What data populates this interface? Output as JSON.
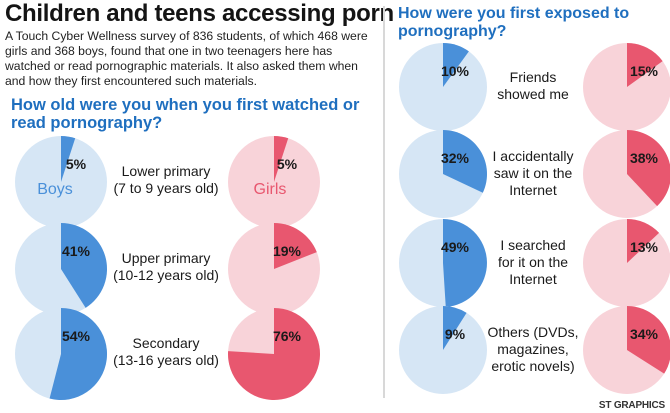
{
  "title": "Children and teens accessing porn",
  "intro": "A Touch Cyber Wellness survey of 836 students, of which 468 were girls and 368 boys, found that one in two teenagers here has watched or read pornographic materials. It also asked them when and how they first encountered such materials.",
  "credit": "ST GRAPHICS",
  "colors": {
    "boys_fill": "#4a90d9",
    "boys_bg": "#d6e6f5",
    "girls_fill": "#e8576f",
    "girls_bg": "#f8d3d9"
  },
  "chart_data": [
    {
      "type": "pie",
      "title": "How old were you when you first watched or read pornography?",
      "legend": [
        "Boys",
        "Girls"
      ],
      "categories": [
        "Lower primary (7 to 9 years old)",
        "Upper primary (10-12 years old)",
        "Secondary (13-16 years old)"
      ],
      "series": [
        {
          "name": "Boys",
          "values": [
            5,
            41,
            54
          ]
        },
        {
          "name": "Girls",
          "values": [
            5,
            19,
            76
          ]
        }
      ]
    },
    {
      "type": "pie",
      "title": "How were you first exposed to pornography?",
      "categories": [
        "Friends showed me",
        "I accidentally saw it on the Internet",
        "I searched for it on the Internet",
        "Others (DVDs, magazines, erotic novels)"
      ],
      "series": [
        {
          "name": "Boys",
          "values": [
            10,
            32,
            49,
            9
          ]
        },
        {
          "name": "Girls",
          "values": [
            15,
            38,
            13,
            34
          ]
        }
      ]
    }
  ],
  "labels": {
    "age": [
      [
        "Lower primary",
        "(7 to 9 years old)"
      ],
      [
        "Upper primary",
        "(10-12 years old)"
      ],
      [
        "Secondary",
        "(13-16 years old)"
      ]
    ],
    "exposure": [
      [
        "Friends",
        "showed me"
      ],
      [
        "I accidentally",
        "saw it on the",
        "Internet"
      ],
      [
        "I searched",
        "for it on the",
        "Internet"
      ],
      [
        "Others (DVDs,",
        "magazines,",
        "erotic novels)"
      ]
    ]
  }
}
